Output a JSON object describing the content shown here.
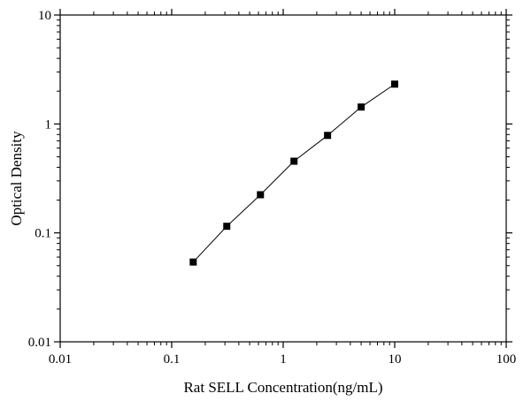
{
  "chart_data": {
    "type": "scatter",
    "title": "",
    "xlabel": "Rat SELL Concentration(ng/mL)",
    "ylabel": "Optical Density",
    "x_scale": "log",
    "y_scale": "log",
    "xlim": [
      0.01,
      100
    ],
    "ylim": [
      0.01,
      10
    ],
    "x_ticks": [
      0.01,
      0.1,
      1,
      10,
      100
    ],
    "x_tick_labels": [
      "0.01",
      "0.1",
      "1",
      "10",
      "100"
    ],
    "y_ticks": [
      0.01,
      0.1,
      1,
      10
    ],
    "y_tick_labels": [
      "0.01",
      "0.1",
      "1",
      "10"
    ],
    "grid": false,
    "series": [
      {
        "marker": "square",
        "fit_line": true,
        "color": "#000000",
        "points": [
          {
            "x": 0.156,
            "y": 0.054
          },
          {
            "x": 0.312,
            "y": 0.115
          },
          {
            "x": 0.625,
            "y": 0.224
          },
          {
            "x": 1.25,
            "y": 0.455
          },
          {
            "x": 2.5,
            "y": 0.785
          },
          {
            "x": 5,
            "y": 1.43
          },
          {
            "x": 10,
            "y": 2.32
          }
        ]
      }
    ]
  }
}
